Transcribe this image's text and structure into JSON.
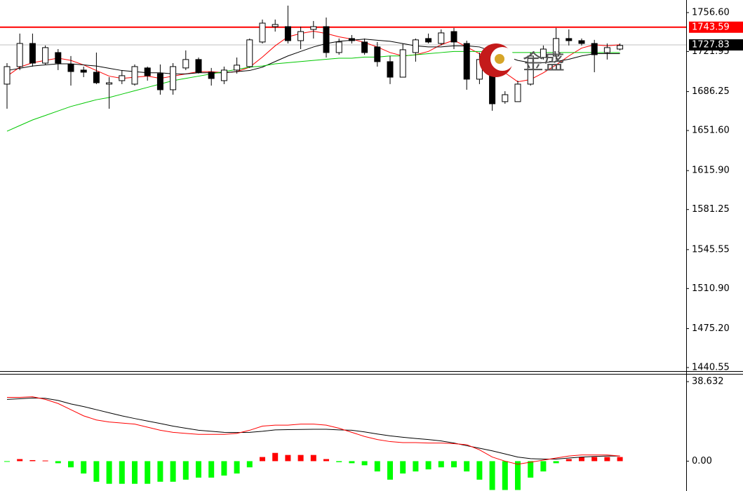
{
  "chart_data": [
    {
      "type": "candlestick",
      "open": [
        1692.9,
        1708.5,
        1729.1,
        1711.6,
        1721.0,
        1710.4,
        1705.4,
        1703.5,
        1692.9,
        1696.0,
        1692.9,
        1707.3,
        1702.3,
        1687.9,
        1707.3,
        1714.8,
        1703.5,
        1696.0,
        1705.4,
        1708.5,
        1730.4,
        1744.1,
        1744.1,
        1731.6,
        1741.6,
        1744.1,
        1721.0,
        1733.5,
        1730.4,
        1726.0,
        1712.9,
        1699.1,
        1721.0,
        1733.5,
        1729.1,
        1739.7,
        1729.1,
        1697.3,
        1700.4,
        1677.3,
        1677.3,
        1692.9,
        1716.6,
        1717.9,
        1733.5,
        1731.6,
        1729.1,
        1721.0,
        1724.1
      ],
      "high": [
        1711.6,
        1737.9,
        1737.9,
        1727.3,
        1724.1,
        1717.9,
        1708.5,
        1721.0,
        1699.1,
        1705.4,
        1710.4,
        1708.5,
        1710.4,
        1711.6,
        1722.9,
        1716.6,
        1707.3,
        1708.5,
        1716.6,
        1733.5,
        1750.4,
        1750.4,
        1762.8,
        1744.1,
        1749.1,
        1752.2,
        1733.5,
        1736.6,
        1733.5,
        1730.4,
        1717.9,
        1729.1,
        1733.5,
        1737.9,
        1741.6,
        1742.9,
        1731.6,
        1721.0,
        1705.4,
        1686.6,
        1696.0,
        1721.0,
        1727.3,
        1742.9,
        1741.6,
        1733.5,
        1732.3,
        1729.1,
        1729.1
      ],
      "low": [
        1671.0,
        1705.4,
        1708.5,
        1710.4,
        1705.4,
        1691.6,
        1699.1,
        1692.9,
        1671.0,
        1692.9,
        1691.6,
        1696.0,
        1683.5,
        1683.5,
        1705.4,
        1702.3,
        1691.6,
        1692.9,
        1702.3,
        1707.3,
        1729.1,
        1739.7,
        1729.1,
        1724.1,
        1733.5,
        1716.6,
        1719.1,
        1729.1,
        1719.1,
        1708.5,
        1692.9,
        1699.1,
        1712.9,
        1729.1,
        1727.3,
        1724.1,
        1687.9,
        1692.9,
        1669.2,
        1675.4,
        1677.3,
        1691.6,
        1714.8,
        1714.8,
        1727.3,
        1727.3,
        1703.5,
        1714.8,
        1722.9
      ],
      "close": [
        1708.5,
        1729.1,
        1711.6,
        1725.4,
        1711.6,
        1704.1,
        1703.5,
        1694.1,
        1694.1,
        1700.4,
        1708.5,
        1700.4,
        1687.9,
        1708.5,
        1714.8,
        1703.5,
        1697.9,
        1705.4,
        1709.8,
        1732.3,
        1747.2,
        1746.0,
        1731.6,
        1739.7,
        1744.1,
        1721.0,
        1730.4,
        1731.6,
        1721.0,
        1712.9,
        1699.1,
        1723.5,
        1732.3,
        1730.4,
        1738.5,
        1730.4,
        1697.3,
        1714.8,
        1675.4,
        1683.5,
        1692.9,
        1717.9,
        1724.1,
        1733.5,
        1731.6,
        1729.1,
        1719.1,
        1725.4,
        1727.3
      ],
      "up_color": "#ffffff",
      "down_color": "#000000",
      "lines": [
        {
          "color": "#ff0000",
          "values": [
            1700,
            1708,
            1712,
            1714,
            1716,
            1714,
            1710,
            1705,
            1700,
            1698,
            1699,
            1700,
            1698,
            1700,
            1702,
            1704,
            1704,
            1703,
            1704,
            1708,
            1717,
            1727,
            1735,
            1738,
            1740,
            1738,
            1735,
            1733,
            1730,
            1726,
            1721,
            1718,
            1719,
            1722,
            1728,
            1732,
            1726,
            1720,
            1712,
            1703,
            1695,
            1697,
            1703,
            1710,
            1718,
            1725,
            1728,
            1727,
            1728
          ]
        },
        {
          "color": "#000000",
          "values": [
            1705,
            1707,
            1709,
            1710,
            1711,
            1711,
            1710,
            1709,
            1707,
            1705,
            1704,
            1703,
            1703,
            1702,
            1702,
            1703,
            1703,
            1703,
            1704,
            1705,
            1708,
            1713,
            1718,
            1722,
            1726,
            1729,
            1731,
            1732,
            1733,
            1732,
            1731,
            1729,
            1727,
            1726,
            1726,
            1727,
            1727,
            1726,
            1722,
            1718,
            1714,
            1712,
            1712,
            1713,
            1715,
            1718,
            1720,
            1720,
            1720
          ]
        },
        {
          "color": "#00c800",
          "values": [
            1651,
            1656,
            1661,
            1665,
            1669,
            1673,
            1676,
            1679,
            1681,
            1684,
            1687,
            1690,
            1693,
            1696,
            1698,
            1700,
            1702,
            1704,
            1706,
            1708,
            1709,
            1711,
            1712,
            1713,
            1714,
            1715,
            1716,
            1716,
            1717,
            1717,
            1718,
            1718,
            1719,
            1720,
            1721,
            1722,
            1722,
            1722,
            1722,
            1721,
            1721,
            1721,
            1721,
            1721,
            1721,
            1721,
            1721,
            1721,
            1721
          ]
        }
      ],
      "price_lines": [
        {
          "value": 1743.59,
          "color": "#ff0000"
        },
        {
          "value": 1727.83,
          "color": "#000000",
          "line_color": "#c0c0c0"
        }
      ],
      "ylim": [
        1436.8,
        1767.8
      ],
      "yticks": [
        {
          "value": 1756.6,
          "label": "1756.60"
        },
        1721.95,
        1686.25,
        {
          "value": 1651.6,
          "label": "1651.60"
        },
        {
          "value": 1615.9,
          "label": "1615.90"
        },
        1581.25,
        1545.55,
        {
          "value": 1510.9,
          "label": "1510.90"
        },
        {
          "value": 1475.2,
          "label": "1475.20"
        },
        1440.55
      ],
      "watermark": "金盛"
    },
    {
      "type": "macd",
      "histogram": [
        -0.3,
        1.0,
        0.5,
        0.3,
        -1,
        -3,
        -6,
        -10,
        -11,
        -11,
        -11,
        -11,
        -10,
        -10,
        -9,
        -8,
        -8,
        -7,
        -6,
        -3,
        2,
        4,
        3,
        3,
        3,
        1,
        -0.5,
        -1,
        -2,
        -5,
        -9,
        -6,
        -5,
        -4,
        -3,
        -3,
        -5,
        -9,
        -14,
        -14,
        -14,
        -8,
        -5,
        -1,
        1,
        2,
        2,
        2,
        2
      ],
      "up_color": "#ff0000",
      "down_color": "#00ff00",
      "lines": [
        {
          "color": "#000000",
          "values": [
            30.0,
            30.3,
            30.7,
            30.5,
            29.5,
            27.8,
            26.5,
            25.0,
            23.5,
            22.0,
            20.7,
            19.5,
            18.3,
            17.0,
            16.0,
            15.0,
            14.5,
            14.0,
            13.9,
            14.0,
            14.5,
            15.2,
            15.3,
            15.4,
            15.5,
            15.5,
            15.2,
            15.0,
            14.2,
            13.2,
            12.3,
            11.6,
            11.0,
            10.5,
            9.8,
            8.8,
            7.5,
            6.3,
            5.0,
            3.5,
            2.0,
            1.2,
            1.0,
            1.0,
            1.5,
            2.0,
            2.3,
            2.5,
            2.5
          ]
        },
        {
          "color": "#ff0000",
          "values": [
            31.0,
            31.0,
            31.3,
            30.0,
            28.0,
            25.0,
            22.0,
            20.0,
            19.0,
            18.5,
            18.0,
            16.5,
            15.0,
            14.0,
            13.5,
            13.0,
            13.0,
            13.0,
            13.5,
            15.0,
            17.0,
            17.5,
            17.5,
            18.0,
            18.0,
            17.5,
            16.0,
            14.0,
            12.0,
            10.5,
            9.5,
            9.0,
            9.0,
            8.8,
            8.8,
            8.5,
            8.0,
            5.5,
            2.0,
            0,
            -1.5,
            -0.5,
            0.5,
            1.5,
            2.5,
            3.0,
            3.0,
            3.0,
            2.5
          ]
        }
      ],
      "ylim": [
        -14.5,
        42.4
      ],
      "yticks": [
        38.632,
        {
          "value": 0,
          "label": "0.00"
        }
      ]
    }
  ]
}
